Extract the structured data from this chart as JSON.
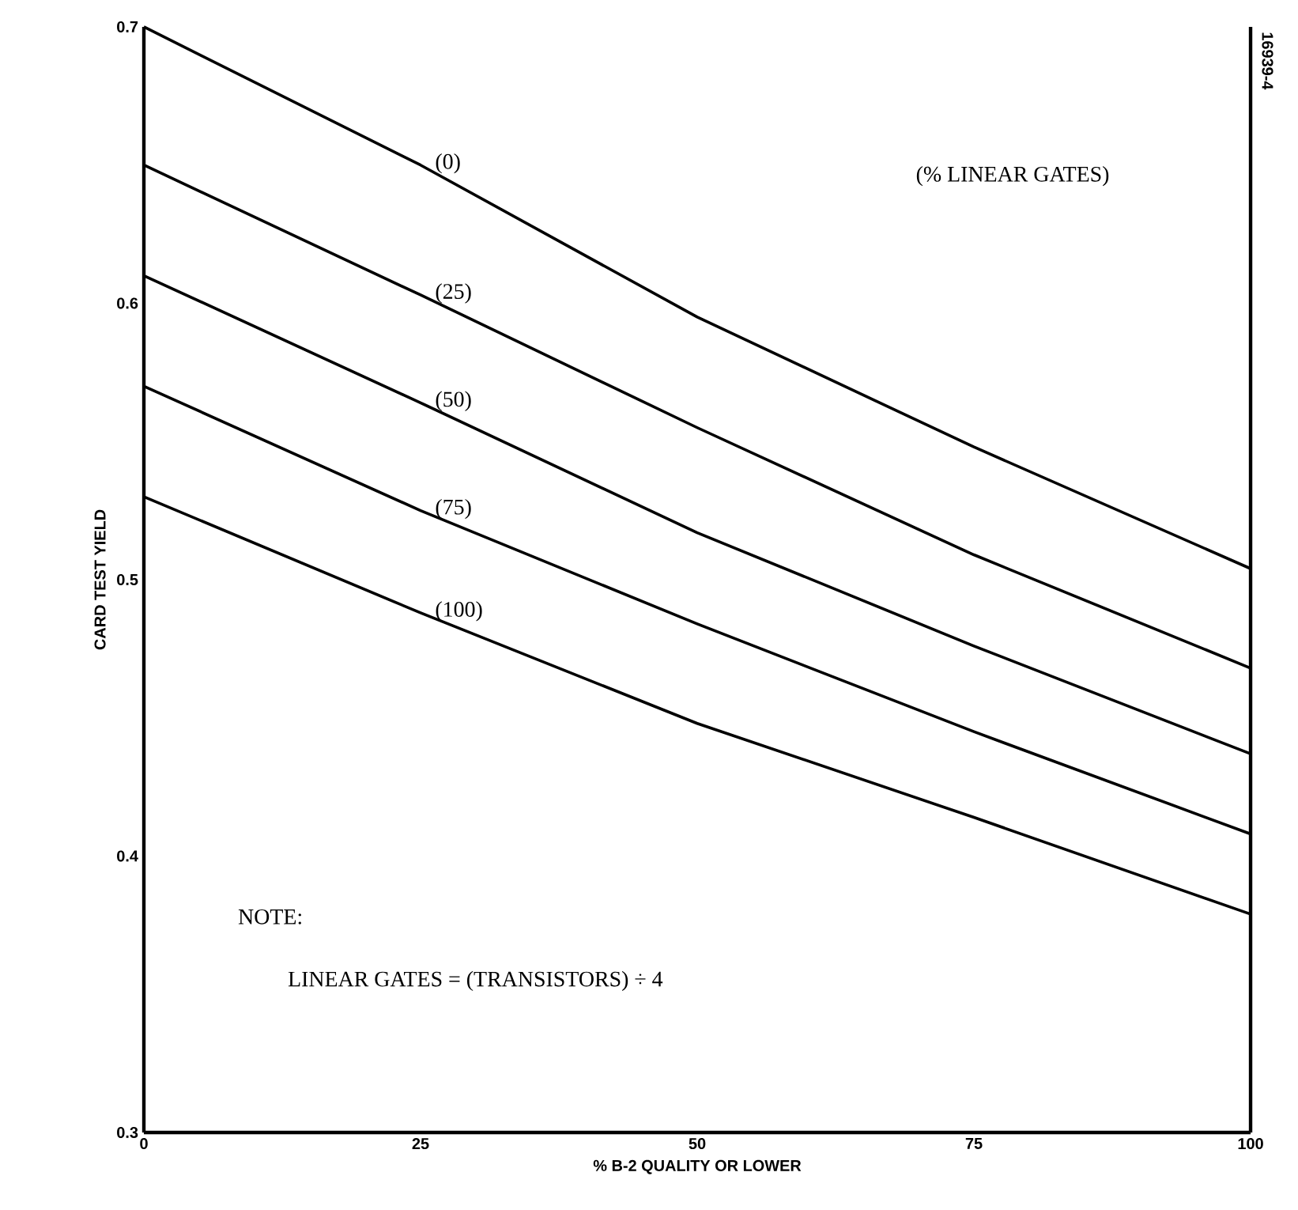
{
  "chart_data": {
    "type": "line",
    "xlabel": "% B-2 QUALITY OR LOWER",
    "ylabel": "CARD TEST YIELD",
    "legend_title": "(% LINEAR GATES)",
    "x": [
      0,
      25,
      50,
      75,
      100
    ],
    "series": [
      {
        "name": "(0)",
        "color": "#000000",
        "values": [
          0.7,
          0.65,
          0.595,
          0.548,
          0.504
        ]
      },
      {
        "name": "(25)",
        "color": "#000000",
        "values": [
          0.65,
          0.603,
          0.555,
          0.509,
          0.468
        ]
      },
      {
        "name": "(50)",
        "color": "#000000",
        "values": [
          0.61,
          0.564,
          0.517,
          0.476,
          0.437
        ]
      },
      {
        "name": "(75)",
        "color": "#000000",
        "values": [
          0.57,
          0.525,
          0.484,
          0.445,
          0.408
        ]
      },
      {
        "name": "(100)",
        "color": "#000000",
        "values": [
          0.53,
          0.488,
          0.448,
          0.414,
          0.379
        ]
      }
    ],
    "xlim": [
      0,
      100
    ],
    "ylim": [
      0.3,
      0.7
    ],
    "xticks": [
      0,
      25,
      50,
      75,
      100
    ],
    "yticks": [
      0.3,
      0.4,
      0.5,
      0.6,
      0.7
    ],
    "grid": false,
    "legend": false,
    "marker": "none",
    "line_style": "solid",
    "annotations": [
      "NOTE:",
      "LINEAR GATES = (TRANSISTORS) ÷ 4",
      "16939-4"
    ]
  }
}
